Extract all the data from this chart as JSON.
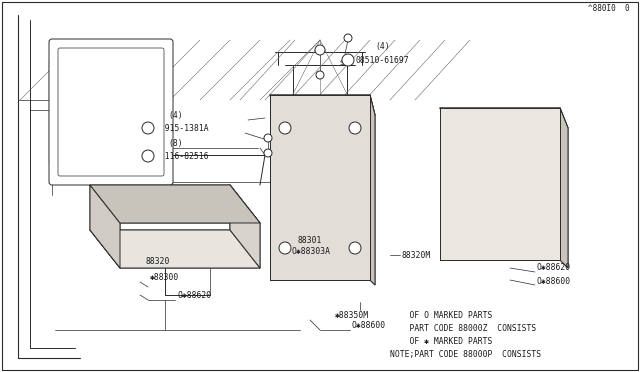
{
  "bg_color": "#ffffff",
  "line_color": "#2a2a2a",
  "text_color": "#1a1a1a",
  "note_lines": [
    "NOTE;PART CODE 88000P  CONSISTS",
    "    OF ✱ MARKED PARTS",
    "    PART CODE 88000Z  CONSISTS",
    "    OF O MARKED PARTS"
  ],
  "footer": "^880I0  0",
  "font_size_label": 5.8,
  "font_size_note": 5.8
}
